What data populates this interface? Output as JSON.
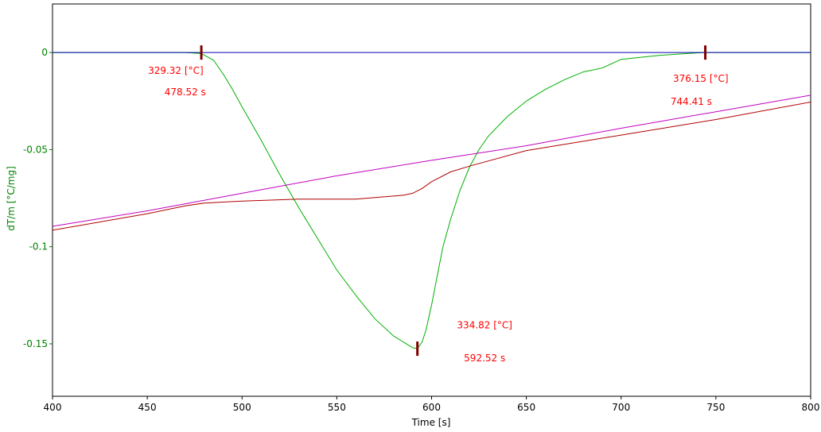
{
  "chart_data": {
    "type": "line",
    "xlabel": "Time [s]",
    "ylabel": "dT/m  [°C/mg]",
    "xlim": [
      400,
      800
    ],
    "ylim": [
      -0.177,
      0.025
    ],
    "xticks": [
      400,
      450,
      500,
      550,
      600,
      650,
      700,
      750,
      800
    ],
    "yticks": [
      0,
      -0.05,
      -0.1,
      -0.15
    ],
    "ytick_labels": [
      "0",
      "-0.05",
      "-0.1",
      "-0.15"
    ],
    "grid": false,
    "colors": {
      "axis_title": "#008000",
      "ytick": "#008000",
      "annotation": "#ff0000",
      "marker": "#800000",
      "frame": "#000000"
    },
    "series": [
      {
        "color": "#00b000",
        "x": [
          400,
          470,
          478.5,
          485,
          490,
          495,
          500,
          510,
          520,
          530,
          540,
          550,
          560,
          570,
          580,
          585,
          590,
          592.5,
          595,
          597,
          600,
          603,
          606,
          610,
          615,
          620,
          625,
          630,
          640,
          650,
          660,
          670,
          680,
          690,
          700,
          710,
          720,
          730,
          740,
          744.4,
          760,
          800
        ],
        "y": [
          0,
          0,
          -0.0005,
          -0.004,
          -0.011,
          -0.019,
          -0.028,
          -0.045,
          -0.063,
          -0.08,
          -0.096,
          -0.112,
          -0.125,
          -0.137,
          -0.146,
          -0.149,
          -0.152,
          -0.1525,
          -0.149,
          -0.143,
          -0.13,
          -0.115,
          -0.1,
          -0.086,
          -0.071,
          -0.059,
          -0.05,
          -0.043,
          -0.033,
          -0.025,
          -0.019,
          -0.014,
          -0.01,
          -0.008,
          -0.0035,
          -0.0025,
          -0.0015,
          -0.0008,
          -0.0002,
          0,
          0,
          0
        ]
      },
      {
        "color": "#0000b0",
        "x": [
          400,
          800
        ],
        "y": [
          0,
          0
        ]
      },
      {
        "color": "#c000c0",
        "x": [
          400,
          450,
          500,
          550,
          600,
          650,
          700,
          750,
          800
        ],
        "y": [
          -0.0895,
          -0.0815,
          -0.0725,
          -0.0635,
          -0.0555,
          -0.048,
          -0.039,
          -0.0305,
          -0.022
        ]
      },
      {
        "color": "#b00000",
        "x": [
          400,
          450,
          470,
          480,
          500,
          530,
          560,
          585,
          590,
          595,
          600,
          610,
          620,
          650,
          700,
          750,
          800
        ],
        "y": [
          -0.0915,
          -0.083,
          -0.079,
          -0.0775,
          -0.0765,
          -0.0755,
          -0.0755,
          -0.0735,
          -0.0725,
          -0.07,
          -0.0665,
          -0.0615,
          -0.0585,
          -0.0505,
          -0.0425,
          -0.0345,
          -0.0255
        ]
      }
    ],
    "markers": [
      {
        "x": 478.52,
        "y": 0
      },
      {
        "x": 592.52,
        "y": -0.1525
      },
      {
        "x": 744.41,
        "y": 0
      }
    ],
    "annotations": [
      {
        "text": "329.32 [°C]",
        "x": 465,
        "y": -0.011
      },
      {
        "text": "478.52 s",
        "x": 470,
        "y": -0.022
      },
      {
        "text": "334.82 [°C]",
        "x": 628,
        "y": -0.142
      },
      {
        "text": "592.52 s",
        "x": 628,
        "y": -0.159
      },
      {
        "text": "376.15 [°C]",
        "x": 742,
        "y": -0.015
      },
      {
        "text": "744.41 s",
        "x": 737,
        "y": -0.027
      }
    ]
  }
}
